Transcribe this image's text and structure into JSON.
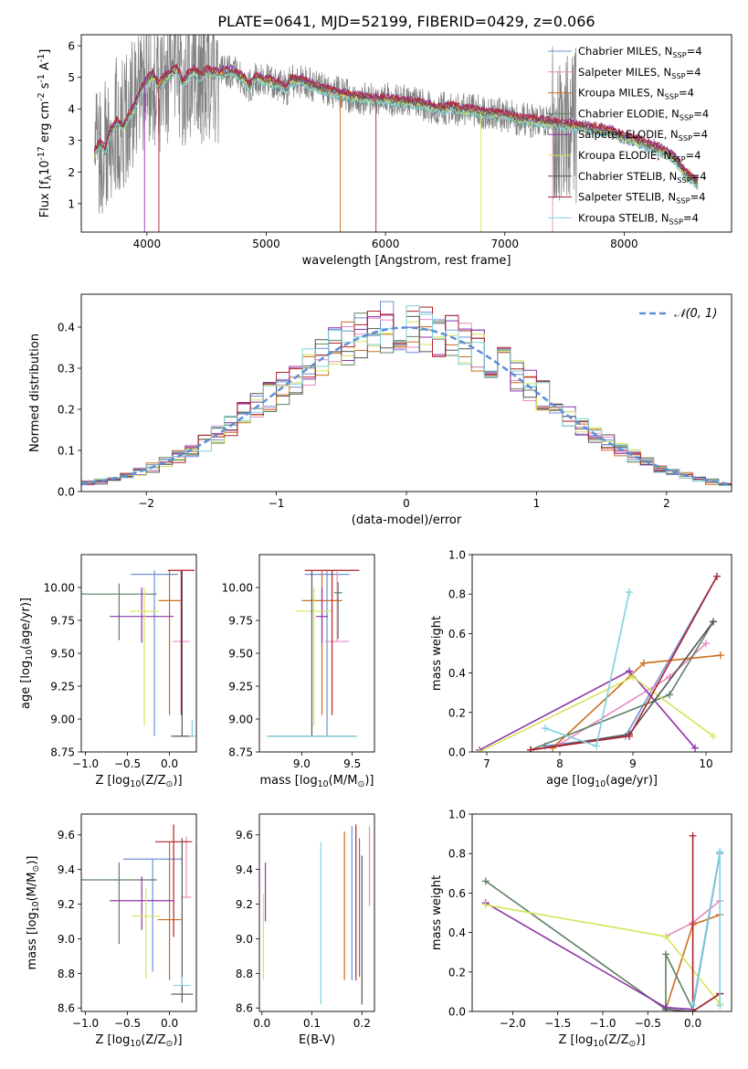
{
  "figure_title": "PLATE=0641, MJD=52199, FIBERID=0429, z=0.066",
  "series_names": [
    "Chabrier MILES, N$_{SSP}$=4",
    "Salpeter MILES, N$_{SSP}$=4",
    "Kroupa MILES, N$_{SSP}$=4",
    "Chabrier ELODIE, N$_{SSP}$=4",
    "Salpeter ELODIE, N$_{SSP}$=4",
    "Kroupa ELODIE, N$_{SSP}$=4",
    "Chabrier STELIB, N$_{SSP}$=4",
    "Salpeter STELIB, N$_{SSP}$=4",
    "Kroupa STELIB, N$_{SSP}$=4"
  ],
  "colors": {
    "series": [
      "#6f8fd9",
      "#e88ac2",
      "#cc6e1c",
      "#5e8060",
      "#8e35a8",
      "#d6e45a",
      "#555555",
      "#b0222b",
      "#7fd1dd"
    ],
    "data_gray": "#808080",
    "gauss": "#5b8fd6",
    "grid": "#b0b0b0"
  },
  "chart_data": [
    {
      "panel": "spectrum",
      "type": "line",
      "title": "PLATE=0641, MJD=52199, FIBERID=0429, z=0.066",
      "xlabel": "wavelength [Angstrom, rest frame]",
      "ylabel": "Flux [f$_\\lambda$10$^{-17}$ erg cm$^{-2}$ s$^{-1}$ A$^{-1}$]",
      "xlim": [
        3450,
        8900
      ],
      "ylim": [
        0.1,
        6.35
      ],
      "xticks": [
        4000,
        5000,
        6000,
        7000,
        8000
      ],
      "yticks": [
        1,
        2,
        3,
        4,
        5,
        6
      ],
      "grid": false,
      "legend_position": "top-right",
      "model_x": [
        3560,
        3600,
        3650,
        3700,
        3750,
        3800,
        3850,
        3900,
        3950,
        4000,
        4050,
        4100,
        4150,
        4200,
        4250,
        4300,
        4350,
        4400,
        4450,
        4500,
        4600,
        4700,
        4800,
        4862,
        4900,
        5000,
        5100,
        5175,
        5200,
        5300,
        5400,
        5500,
        5600,
        5700,
        5800,
        5900,
        6000,
        6100,
        6200,
        6300,
        6400,
        6500,
        6563,
        6600,
        6700,
        6800,
        6900,
        7000,
        7100,
        7200,
        7300,
        7400,
        7500,
        7600,
        7700,
        7800,
        7900,
        8000,
        8100,
        8200,
        8300,
        8400,
        8450,
        8500,
        8600,
        8700
      ],
      "model_y": [
        2.6,
        2.9,
        2.7,
        3.3,
        3.6,
        3.4,
        3.8,
        4.1,
        4.6,
        4.9,
        5.1,
        4.7,
        5.0,
        5.1,
        5.3,
        4.8,
        5.1,
        5.2,
        5.0,
        5.2,
        5.1,
        5.2,
        5.0,
        4.7,
        5.0,
        4.9,
        4.8,
        4.6,
        4.9,
        4.9,
        4.7,
        4.6,
        4.5,
        4.4,
        4.35,
        4.3,
        4.3,
        4.25,
        4.2,
        4.15,
        4.05,
        4.0,
        4.1,
        4.0,
        3.95,
        3.9,
        3.85,
        3.8,
        3.7,
        3.65,
        3.6,
        3.55,
        3.5,
        3.45,
        3.4,
        3.35,
        3.25,
        3.1,
        3.0,
        2.85,
        2.7,
        2.5,
        2.3,
        2.0,
        1.7,
        1.6
      ],
      "model_offsets": [
        0.04,
        -0.05,
        0.08,
        -0.1,
        0.12,
        -0.06,
        0.0,
        0.1,
        -0.12
      ]
    },
    {
      "panel": "residuals",
      "type": "step",
      "xlabel": "(data-model)/error",
      "ylabel": "Normed distribution",
      "xlim": [
        -2.5,
        2.5
      ],
      "ylim": [
        0.0,
        0.48
      ],
      "xticks": [
        -2,
        -1,
        0,
        1,
        2
      ],
      "yticks": [
        0.0,
        0.1,
        0.2,
        0.3,
        0.4
      ],
      "grid": true,
      "legend": "$\\mathcal{N}(0,1)$",
      "bin_width": 0.1,
      "bin_start": -2.5
    },
    {
      "panel": "age_vs_Z",
      "type": "errorbar",
      "xlabel": "Z [log$_{10}$(Z/Z$_\\odot$)]",
      "ylabel": "age  [log$_{10}$(age/yr)]",
      "xlim": [
        -1.05,
        0.32
      ],
      "ylim": [
        8.75,
        10.25
      ],
      "xticks": [
        -1.0,
        -0.5,
        0.0
      ],
      "yticks": [
        8.75,
        9.0,
        9.25,
        9.5,
        9.75,
        10.0
      ],
      "points": [
        {
          "x": -0.18,
          "y": 10.1,
          "xerr": 0.28,
          "yerr_lo": 1.23,
          "yerr_hi": 0.03
        },
        {
          "x": 0.14,
          "y": 9.59,
          "xerr": 0.1,
          "yerr_lo": 0.0,
          "yerr_hi": 0.53
        },
        {
          "x": 0.0,
          "y": 9.9,
          "xerr": 0.13,
          "yerr_lo": 0.87,
          "yerr_hi": 0.23
        },
        {
          "x": -0.6,
          "y": 9.95,
          "xerr": 0.45,
          "yerr_lo": 0.35,
          "yerr_hi": 0.08
        },
        {
          "x": -0.33,
          "y": 9.78,
          "xerr": 0.38,
          "yerr_lo": 0.2,
          "yerr_hi": 0.22
        },
        {
          "x": -0.3,
          "y": 9.82,
          "xerr": 0.17,
          "yerr_lo": 0.87,
          "yerr_hi": 0.18
        },
        {
          "x": 0.15,
          "y": 8.87,
          "xerr": 0.13,
          "yerr_lo": 0.0,
          "yerr_hi": 1.26
        },
        {
          "x": 0.14,
          "y": 10.13,
          "xerr": 0.16,
          "yerr_lo": 1.1,
          "yerr_hi": 0.0
        },
        {
          "x": 0.27,
          "y": 8.87,
          "xerr": 0.04,
          "yerr_lo": 0.0,
          "yerr_hi": 0.12
        }
      ]
    },
    {
      "panel": "age_vs_mass",
      "type": "errorbar",
      "xlabel": "mass [log$_{10}$(M/M$_\\odot$)]",
      "ylabel": "",
      "xlim": [
        8.58,
        9.72
      ],
      "ylim": [
        8.75,
        10.25
      ],
      "xticks": [
        9.0,
        9.5
      ],
      "yticks": [
        8.75,
        9.0,
        9.25,
        9.5,
        9.75,
        10.0
      ],
      "points": [
        {
          "x": 9.25,
          "y": 10.1,
          "xerr": 0.22,
          "yerr_lo": 1.23,
          "yerr_hi": 0.03
        },
        {
          "x": 9.35,
          "y": 9.59,
          "xerr": 0.12,
          "yerr_lo": 0.0,
          "yerr_hi": 0.53
        },
        {
          "x": 9.2,
          "y": 9.9,
          "xerr": 0.2,
          "yerr_lo": 0.87,
          "yerr_hi": 0.23
        },
        {
          "x": 9.36,
          "y": 9.96,
          "xerr": 0.04,
          "yerr_lo": 0.35,
          "yerr_hi": 0.08
        },
        {
          "x": 9.2,
          "y": 9.78,
          "xerr": 0.06,
          "yerr_lo": 0.2,
          "yerr_hi": 0.22
        },
        {
          "x": 9.12,
          "y": 9.82,
          "xerr": 0.18,
          "yerr_lo": 0.87,
          "yerr_hi": 0.18
        },
        {
          "x": 9.1,
          "y": 8.87,
          "xerr": 0.43,
          "yerr_lo": 0.0,
          "yerr_hi": 1.26
        },
        {
          "x": 9.3,
          "y": 10.13,
          "xerr": 0.27,
          "yerr_lo": 1.1,
          "yerr_hi": 0.0
        },
        {
          "x": 9.1,
          "y": 8.87,
          "xerr": 0.45,
          "yerr_lo": 0.0,
          "yerr_hi": 0.0
        }
      ]
    },
    {
      "panel": "weight_vs_age",
      "type": "line",
      "xlabel": "age  [log$_{10}$(age/yr)]",
      "ylabel": "mass weight",
      "xlim": [
        6.8,
        10.35
      ],
      "ylim": [
        0.0,
        1.0
      ],
      "xticks": [
        7,
        8,
        9,
        10
      ],
      "yticks": [
        0.0,
        0.2,
        0.4,
        0.6,
        0.8,
        1.0
      ],
      "grid": true,
      "series": [
        {
          "x": [
            7.8,
            8.9,
            10.15
          ],
          "y": [
            0.03,
            0.08,
            0.89
          ]
        },
        {
          "x": [
            8.0,
            9.5,
            10.0
          ],
          "y": [
            0.04,
            0.38,
            0.55
          ]
        },
        {
          "x": [
            7.9,
            9.15,
            10.2
          ],
          "y": [
            0.02,
            0.45,
            0.49
          ]
        },
        {
          "x": [
            7.6,
            9.5,
            10.1
          ],
          "y": [
            0.01,
            0.29,
            0.66
          ]
        },
        {
          "x": [
            6.9,
            8.95,
            9.85
          ],
          "y": [
            0.01,
            0.41,
            0.02
          ]
        },
        {
          "x": [
            6.9,
            9.0,
            10.1
          ],
          "y": [
            0.0,
            0.38,
            0.08
          ]
        },
        {
          "x": [
            7.6,
            8.95,
            10.1
          ],
          "y": [
            0.01,
            0.09,
            0.66
          ]
        },
        {
          "x": [
            7.6,
            8.95,
            10.15
          ],
          "y": [
            0.01,
            0.08,
            0.89
          ]
        },
        {
          "x": [
            7.8,
            8.5,
            8.95
          ],
          "y": [
            0.12,
            0.03,
            0.81
          ]
        }
      ]
    },
    {
      "panel": "mass_vs_Z",
      "type": "errorbar",
      "xlabel": "Z [log$_{10}$(Z/Z$_\\odot$)]",
      "ylabel": "mass [log$_{10}$(M/M$_\\odot$)]",
      "xlim": [
        -1.05,
        0.32
      ],
      "ylim": [
        8.58,
        9.72
      ],
      "xticks": [
        -1.0,
        -0.5,
        0.0
      ],
      "yticks": [
        8.6,
        8.8,
        9.0,
        9.2,
        9.4,
        9.6
      ],
      "points": [
        {
          "x": -0.2,
          "y": 9.46,
          "xerr": 0.35,
          "yerr_lo": 0.65,
          "yerr_hi": 0.0
        },
        {
          "x": 0.2,
          "y": 9.24,
          "xerr": 0.06,
          "yerr_lo": 0.0,
          "yerr_hi": 0.35
        },
        {
          "x": 0.0,
          "y": 9.11,
          "xerr": 0.14,
          "yerr_lo": 0.35,
          "yerr_hi": 0.45
        },
        {
          "x": -0.6,
          "y": 9.34,
          "xerr": 0.45,
          "yerr_lo": 0.37,
          "yerr_hi": 0.1
        },
        {
          "x": -0.33,
          "y": 9.22,
          "xerr": 0.38,
          "yerr_lo": 0.17,
          "yerr_hi": 0.14
        },
        {
          "x": -0.28,
          "y": 9.13,
          "xerr": 0.17,
          "yerr_lo": 0.36,
          "yerr_hi": 0.16
        },
        {
          "x": 0.15,
          "y": 8.68,
          "xerr": 0.13,
          "yerr_lo": 0.05,
          "yerr_hi": 0.9
        },
        {
          "x": 0.05,
          "y": 9.56,
          "xerr": 0.22,
          "yerr_lo": 0.55,
          "yerr_hi": 0.1
        },
        {
          "x": 0.15,
          "y": 8.73,
          "xerr": 0.1,
          "yerr_lo": 0.0,
          "yerr_hi": 0.05
        }
      ]
    },
    {
      "panel": "mass_vs_EBV",
      "type": "errorbar",
      "xlabel": "E(B-V)",
      "ylabel": "",
      "xlim": [
        -0.005,
        0.225
      ],
      "ylim": [
        8.58,
        9.72
      ],
      "xticks": [
        0.0,
        0.1,
        0.2
      ],
      "yticks": [
        8.6,
        8.8,
        9.0,
        9.2,
        9.4,
        9.6
      ],
      "points": [
        {
          "x": 0.18,
          "y": 8.76,
          "xerr": 0.0,
          "yerr_lo": 0.0,
          "yerr_hi": 0.89
        },
        {
          "x": 0.215,
          "y": 9.19,
          "xerr": 0.0,
          "yerr_lo": 0.0,
          "yerr_hi": 0.46
        },
        {
          "x": 0.165,
          "y": 8.76,
          "xerr": 0.0,
          "yerr_lo": 0.0,
          "yerr_hi": 0.86
        },
        {
          "x": 0.195,
          "y": 8.78,
          "xerr": 0.0,
          "yerr_lo": 0.0,
          "yerr_hi": 0.8
        },
        {
          "x": 0.007,
          "y": 9.1,
          "xerr": 0.0,
          "yerr_lo": 0.0,
          "yerr_hi": 0.34
        },
        {
          "x": 0.003,
          "y": 8.76,
          "xerr": 0.0,
          "yerr_lo": 0.0,
          "yerr_hi": 0.5
        },
        {
          "x": 0.2,
          "y": 8.62,
          "xerr": 0.0,
          "yerr_lo": 0.0,
          "yerr_hi": 0.86
        },
        {
          "x": 0.188,
          "y": 8.76,
          "xerr": 0.0,
          "yerr_lo": 0.0,
          "yerr_hi": 0.9
        },
        {
          "x": 0.118,
          "y": 8.62,
          "xerr": 0.0,
          "yerr_lo": 0.0,
          "yerr_hi": 0.94
        }
      ]
    },
    {
      "panel": "weight_vs_Z",
      "type": "line",
      "xlabel": "Z [log$_{10}$(Z/Z$_\\odot$)]",
      "ylabel": "mass weight",
      "xlim": [
        -2.45,
        0.43
      ],
      "ylim": [
        0.0,
        1.0
      ],
      "xticks": [
        -2.0,
        -1.5,
        -1.0,
        -0.5,
        0.0
      ],
      "yticks": [
        0.0,
        0.2,
        0.4,
        0.6,
        0.8,
        1.0
      ],
      "grid": true,
      "series": [
        {
          "x": [
            -0.3,
            0.0,
            0.3
          ],
          "y": [
            0.02,
            0.01,
            0.8
          ]
        },
        {
          "x": [
            -0.3,
            0.0,
            0.3
          ],
          "y": [
            0.38,
            0.45,
            0.56
          ]
        },
        {
          "x": [
            -0.3,
            0.0,
            0.3
          ],
          "y": [
            0.01,
            0.44,
            0.49
          ]
        },
        {
          "x": [
            -2.3,
            -0.3,
            -0.3,
            0.0
          ],
          "y": [
            0.66,
            0.01,
            0.29,
            0.01
          ]
        },
        {
          "x": [
            -2.3,
            -0.3,
            0.0
          ],
          "y": [
            0.55,
            0.02,
            0.01
          ]
        },
        {
          "x": [
            -2.3,
            -0.3,
            0.3
          ],
          "y": [
            0.54,
            0.38,
            0.04
          ]
        },
        {
          "x": [
            -0.3,
            0.0,
            0.3
          ],
          "y": [
            0.01,
            0.0,
            0.09
          ]
        },
        {
          "x": [
            0.0,
            0.0,
            0.3
          ],
          "y": [
            0.89,
            0.0,
            0.09
          ]
        },
        {
          "x": [
            0.0,
            0.3,
            0.3
          ],
          "y": [
            0.03,
            0.81,
            0.03
          ]
        }
      ]
    }
  ]
}
